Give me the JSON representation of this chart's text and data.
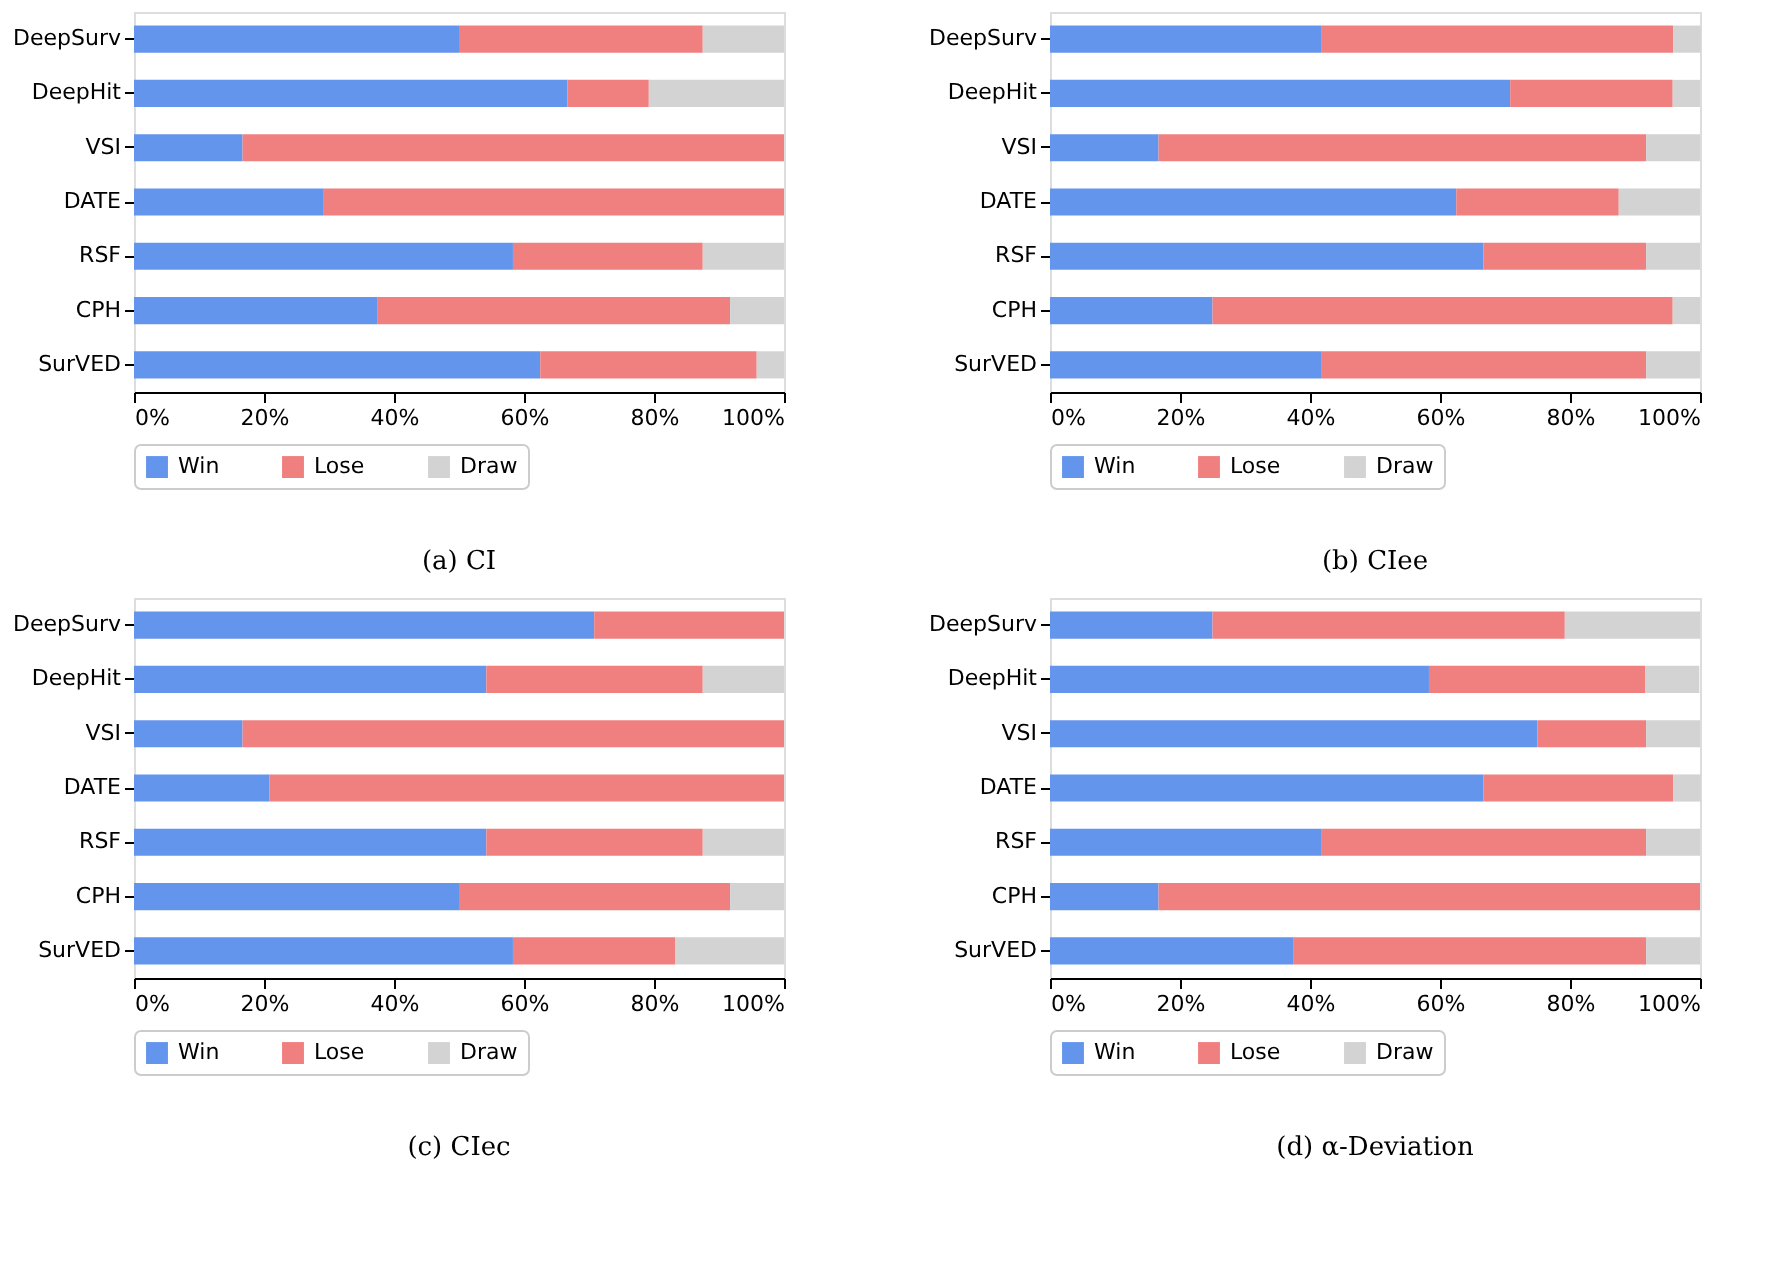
{
  "chart_data": [
    {
      "type": "bar",
      "orientation": "horizontal",
      "stacked": true,
      "title": "(a) CI",
      "categories": [
        "DeepSurv",
        "DeepHit",
        "VSI",
        "DATE",
        "RSF",
        "CPH",
        "SurVED"
      ],
      "series": [
        {
          "name": "Win",
          "color": "#6495ed",
          "values": [
            50,
            66.7,
            16.7,
            29.2,
            58.3,
            37.5,
            62.5
          ]
        },
        {
          "name": "Lose",
          "color": "#f08080",
          "values": [
            37.5,
            12.5,
            83.3,
            70.8,
            29.2,
            54.2,
            33.3
          ]
        },
        {
          "name": "Draw",
          "color": "#d3d3d3",
          "values": [
            12.5,
            20.8,
            0,
            0,
            12.5,
            8.3,
            4.2
          ]
        }
      ],
      "xlim": [
        0,
        100
      ],
      "xticks": [
        {
          "value": 0,
          "label": "0%"
        },
        {
          "value": 20,
          "label": "20%"
        },
        {
          "value": 40,
          "label": "40%"
        },
        {
          "value": 60,
          "label": "60%"
        },
        {
          "value": 80,
          "label": "80%"
        },
        {
          "value": 100,
          "label": "100%"
        }
      ],
      "grid": false,
      "legend": "bottom"
    },
    {
      "type": "bar",
      "orientation": "horizontal",
      "stacked": true,
      "title": "(b) CIee",
      "categories": [
        "DeepSurv",
        "DeepHit",
        "VSI",
        "DATE",
        "RSF",
        "CPH",
        "SurVED"
      ],
      "series": [
        {
          "name": "Win",
          "color": "#6495ed",
          "values": [
            41.7,
            70.8,
            16.7,
            62.5,
            66.7,
            25,
            41.7
          ]
        },
        {
          "name": "Lose",
          "color": "#f08080",
          "values": [
            54.2,
            25,
            75,
            25,
            25,
            70.8,
            50
          ]
        },
        {
          "name": "Draw",
          "color": "#d3d3d3",
          "values": [
            4.2,
            4.2,
            8.3,
            12.5,
            8.3,
            4.2,
            8.3
          ]
        }
      ],
      "xlim": [
        0,
        100
      ],
      "xticks": [
        {
          "value": 0,
          "label": "0%"
        },
        {
          "value": 20,
          "label": "20%"
        },
        {
          "value": 40,
          "label": "40%"
        },
        {
          "value": 60,
          "label": "60%"
        },
        {
          "value": 80,
          "label": "80%"
        },
        {
          "value": 100,
          "label": "100%"
        }
      ],
      "grid": false,
      "legend": "bottom"
    },
    {
      "type": "bar",
      "orientation": "horizontal",
      "stacked": true,
      "title": "(c) CIec",
      "categories": [
        "DeepSurv",
        "DeepHit",
        "VSI",
        "DATE",
        "RSF",
        "CPH",
        "SurVED"
      ],
      "series": [
        {
          "name": "Win",
          "color": "#6495ed",
          "values": [
            70.8,
            54.2,
            16.7,
            20.8,
            54.2,
            50,
            58.3
          ]
        },
        {
          "name": "Lose",
          "color": "#f08080",
          "values": [
            29.2,
            33.3,
            83.3,
            79.2,
            33.3,
            41.7,
            25
          ]
        },
        {
          "name": "Draw",
          "color": "#d3d3d3",
          "values": [
            0,
            12.5,
            0,
            0,
            12.5,
            8.3,
            16.7
          ]
        }
      ],
      "xlim": [
        0,
        100
      ],
      "xticks": [
        {
          "value": 0,
          "label": "0%"
        },
        {
          "value": 20,
          "label": "20%"
        },
        {
          "value": 40,
          "label": "40%"
        },
        {
          "value": 60,
          "label": "60%"
        },
        {
          "value": 80,
          "label": "80%"
        },
        {
          "value": 100,
          "label": "100%"
        }
      ],
      "grid": false,
      "legend": "bottom"
    },
    {
      "type": "bar",
      "orientation": "horizontal",
      "stacked": true,
      "title": "(d) α-Deviation",
      "categories": [
        "DeepSurv",
        "DeepHit",
        "VSI",
        "DATE",
        "RSF",
        "CPH",
        "SurVED"
      ],
      "series": [
        {
          "name": "Win",
          "color": "#6495ed",
          "values": [
            25,
            58.3,
            75,
            66.7,
            41.7,
            16.7,
            37.5
          ]
        },
        {
          "name": "Lose",
          "color": "#f08080",
          "values": [
            54.2,
            33.3,
            16.7,
            29.2,
            50,
            83.3,
            54.2
          ]
        },
        {
          "name": "Draw",
          "color": "#d3d3d3",
          "values": [
            20.8,
            8.3,
            8.3,
            4.2,
            8.3,
            0,
            8.3
          ]
        }
      ],
      "xlim": [
        0,
        100
      ],
      "xticks": [
        {
          "value": 0,
          "label": "0%"
        },
        {
          "value": 20,
          "label": "20%"
        },
        {
          "value": 40,
          "label": "40%"
        },
        {
          "value": 60,
          "label": "60%"
        },
        {
          "value": 80,
          "label": "80%"
        },
        {
          "value": 100,
          "label": "100%"
        }
      ],
      "grid": false,
      "legend": "bottom"
    }
  ]
}
